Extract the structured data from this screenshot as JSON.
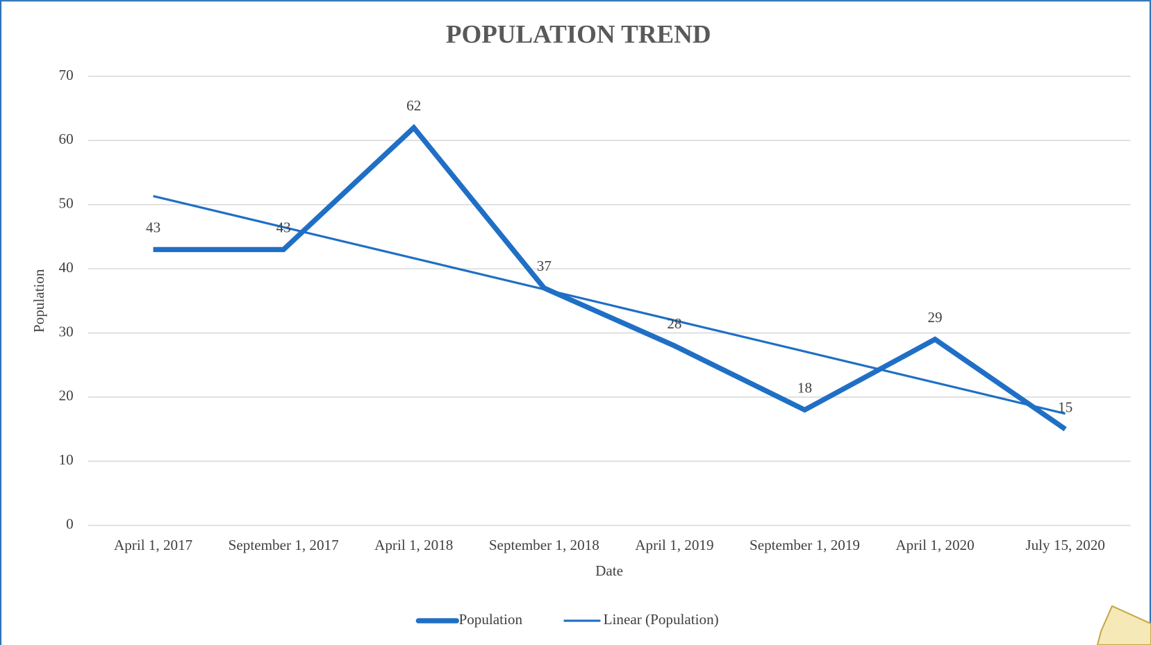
{
  "chart_data": {
    "type": "line",
    "title": "POPULATION TREND",
    "x_label": "Date",
    "y_label": "Population",
    "categories": [
      "April 1, 2017",
      "September 1, 2017",
      "April 1, 2018",
      "September 1, 2018",
      "April 1, 2019",
      "September 1, 2019",
      "April 1, 2020",
      "July 15, 2020"
    ],
    "series": [
      {
        "name": "Population",
        "color": "#1f6fc5",
        "values": [
          43,
          43,
          62,
          37,
          28,
          18,
          29,
          15
        ]
      }
    ],
    "trendline": {
      "name": "Linear (Population)",
      "kind": "linear",
      "color": "#1f6fc5"
    },
    "ylim": [
      0,
      70
    ],
    "yticks": [
      0,
      10,
      20,
      30,
      40,
      50,
      60,
      70
    ],
    "grid": true,
    "legend": "bottom"
  }
}
